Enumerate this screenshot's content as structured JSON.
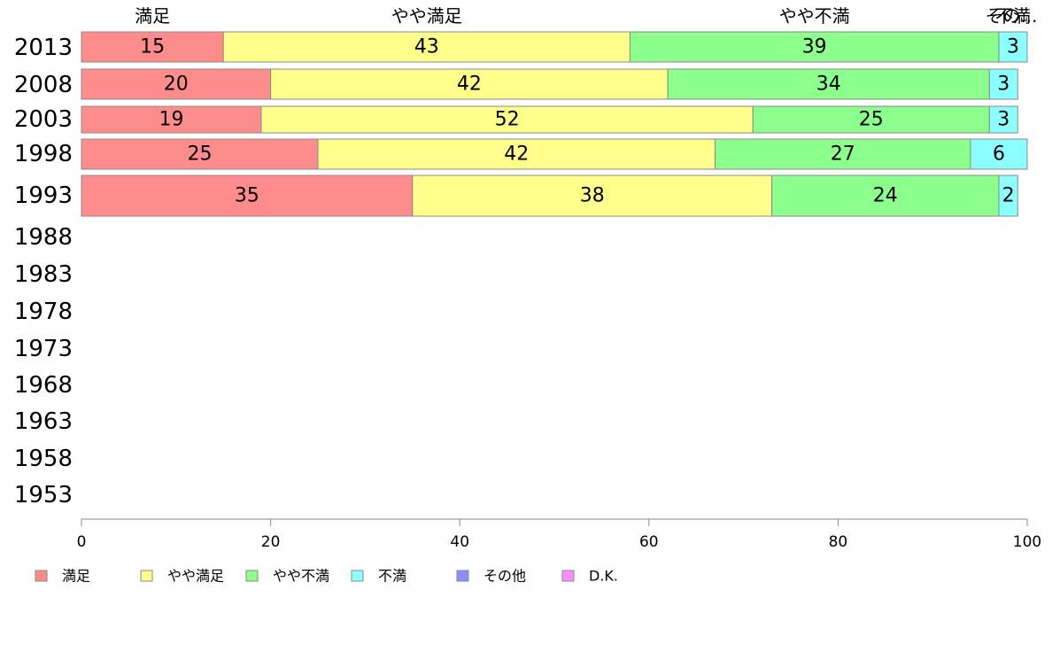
{
  "chart_data": {
    "type": "bar",
    "orientation": "horizontal",
    "stacked": true,
    "title": "",
    "xlabel": "",
    "ylabel": "",
    "xlim": [
      0,
      100
    ],
    "xticks": [
      "0",
      "20",
      "40",
      "60",
      "80",
      "100"
    ],
    "categories": [
      "2013",
      "2008",
      "2003",
      "1998",
      "1993",
      "1988",
      "1983",
      "1978",
      "1973",
      "1968",
      "1963",
      "1958",
      "1953"
    ],
    "series": [
      {
        "name": "満足",
        "color": "#ff8c8c",
        "values": [
          15,
          20,
          19,
          25,
          35,
          null,
          null,
          null,
          null,
          null,
          null,
          null,
          null
        ]
      },
      {
        "name": "やや満足",
        "color": "#ffff8c",
        "values": [
          43,
          42,
          52,
          42,
          38,
          null,
          null,
          null,
          null,
          null,
          null,
          null,
          null
        ]
      },
      {
        "name": "やや不満",
        "color": "#8cff8c",
        "values": [
          39,
          34,
          25,
          27,
          24,
          null,
          null,
          null,
          null,
          null,
          null,
          null,
          null
        ]
      },
      {
        "name": "不満",
        "color": "#8cffff",
        "values": [
          3,
          3,
          3,
          6,
          2,
          null,
          null,
          null,
          null,
          null,
          null,
          null,
          null
        ]
      },
      {
        "name": "その他",
        "color": "#8c8cff",
        "values": [
          0,
          0,
          0,
          0,
          0,
          null,
          null,
          null,
          null,
          null,
          null,
          null,
          null
        ]
      },
      {
        "name": "D.K.",
        "color": "#ff8cff",
        "values": [
          0,
          0,
          0,
          0,
          0,
          null,
          null,
          null,
          null,
          null,
          null,
          null,
          null
        ]
      }
    ],
    "top_labels": [
      "満足",
      "やや満足",
      "やや不満",
      "不満",
      "その..."
    ],
    "legend_position": "bottom-left",
    "grid": false
  }
}
